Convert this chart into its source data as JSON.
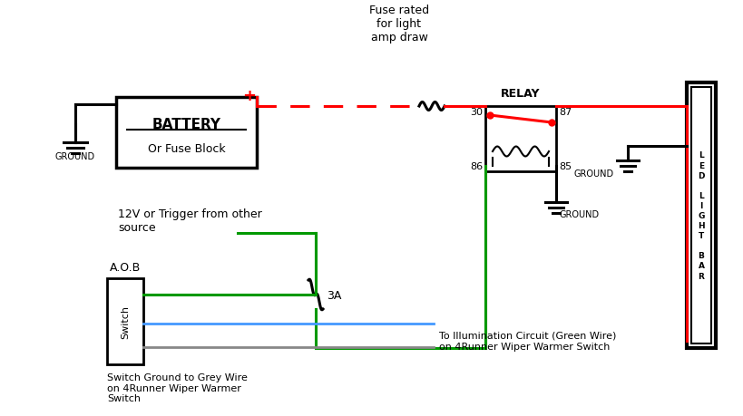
{
  "bg_color": "#ffffff",
  "colors": {
    "red": "#ff0000",
    "green": "#009900",
    "black": "#000000",
    "blue": "#4499ff",
    "grey": "#888888"
  },
  "labels": {
    "battery_line1": "BATTERY",
    "battery_line2": "Or Fuse Block",
    "ground_battery": "GROUND",
    "fuse_label": "Fuse rated\nfor light\namp draw",
    "relay_label": "RELAY",
    "relay_30": "30",
    "relay_86": "86",
    "relay_87": "87",
    "relay_85": "85",
    "ground_relay": "GROUND",
    "ground_led": "GROUND",
    "trigger_label": "12V or Trigger from other\nsource",
    "fuse_3a": "3A",
    "switch_label": "A.O.B",
    "switch_body": "Switch",
    "bottom_label1": "Switch Ground to Grey Wire\non 4Runner Wiper Warmer\nSwitch",
    "bottom_label2": "To Illumination Circuit (Green Wire)\non 4Runner Wiper Warmer Switch"
  }
}
